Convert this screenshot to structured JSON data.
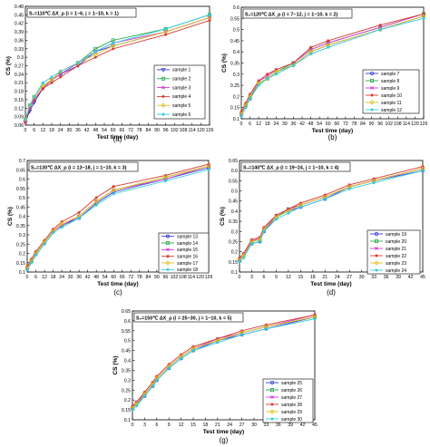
{
  "chart_data": [
    {
      "type": "line",
      "panel_label": "(a)",
      "condition_text": "S₁=110℃   ΔX_ρ (i = 1~6, j = 1~10, k = 1)",
      "xlabel": "Test time (day)",
      "ylabel": "CS (%)",
      "x_ticks": [
        0,
        6,
        12,
        18,
        24,
        30,
        36,
        42,
        48,
        54,
        60,
        66,
        72,
        78,
        84,
        90,
        96,
        102,
        108,
        114,
        120,
        126
      ],
      "xlim": [
        0,
        126
      ],
      "ylim": [
        0.06,
        0.48
      ],
      "y_ticks": [
        0.06,
        0.09,
        0.12,
        0.15,
        0.18,
        0.21,
        0.24,
        0.27,
        0.3,
        0.33,
        0.36,
        0.39,
        0.42,
        0.45,
        0.48
      ],
      "legend_position": "right",
      "x": [
        0,
        3,
        6,
        12,
        18,
        24,
        36,
        48,
        60,
        96,
        126
      ],
      "series": [
        {
          "name": "sample 1",
          "color": "#3a3adf",
          "marker": "tri-down",
          "values": [
            0.07,
            0.11,
            0.14,
            0.19,
            0.22,
            0.24,
            0.27,
            0.32,
            0.34,
            0.39,
            0.44
          ]
        },
        {
          "name": "sample 2",
          "color": "#2aa84a",
          "marker": "square",
          "values": [
            0.08,
            0.13,
            0.16,
            0.2,
            0.22,
            0.24,
            0.28,
            0.33,
            0.36,
            0.4,
            0.45
          ]
        },
        {
          "name": "sample 3",
          "color": "#d03ad0",
          "marker": "cross",
          "values": [
            0.07,
            0.12,
            0.15,
            0.19,
            0.22,
            0.24,
            0.28,
            0.32,
            0.35,
            0.39,
            0.44
          ]
        },
        {
          "name": "sample 4",
          "color": "#d8382e",
          "marker": "star",
          "values": [
            0.07,
            0.12,
            0.15,
            0.19,
            0.21,
            0.23,
            0.27,
            0.3,
            0.33,
            0.38,
            0.43
          ]
        },
        {
          "name": "sample 5",
          "color": "#e0c020",
          "marker": "diamond",
          "values": [
            0.08,
            0.13,
            0.16,
            0.2,
            0.22,
            0.25,
            0.28,
            0.31,
            0.34,
            0.39,
            0.44
          ]
        },
        {
          "name": "sample 6",
          "color": "#33ccdd",
          "marker": "star",
          "values": [
            0.08,
            0.13,
            0.16,
            0.21,
            0.23,
            0.25,
            0.28,
            0.32,
            0.35,
            0.4,
            0.45
          ]
        }
      ]
    },
    {
      "type": "line",
      "panel_label": "(b)",
      "condition_text": "S₂=120℃   ΔX_ρ (i = 7~12, j = 1~10, k = 2)",
      "xlabel": "Test time (day)",
      "ylabel": "CS (%)",
      "x_ticks": [
        0,
        6,
        12,
        18,
        24,
        30,
        36,
        42,
        48,
        54,
        60,
        66,
        72,
        78,
        84,
        90,
        96,
        102,
        108,
        114,
        120,
        126
      ],
      "xlim": [
        0,
        126
      ],
      "ylim": [
        0.1,
        0.6
      ],
      "y_ticks": [
        0.1,
        0.15,
        0.2,
        0.25,
        0.3,
        0.35,
        0.4,
        0.45,
        0.5,
        0.55,
        0.6
      ],
      "legend_position": "bottom-right",
      "x": [
        0,
        3,
        6,
        12,
        18,
        24,
        36,
        48,
        60,
        96,
        126
      ],
      "series": [
        {
          "name": "sample 7",
          "color": "#3a3adf",
          "marker": "circle",
          "values": [
            0.12,
            0.16,
            0.19,
            0.26,
            0.28,
            0.31,
            0.34,
            0.4,
            0.43,
            0.5,
            0.56
          ]
        },
        {
          "name": "sample 8",
          "color": "#2aa84a",
          "marker": "square",
          "values": [
            0.12,
            0.16,
            0.2,
            0.26,
            0.28,
            0.31,
            0.35,
            0.41,
            0.44,
            0.51,
            0.57
          ]
        },
        {
          "name": "sample 9",
          "color": "#d03ad0",
          "marker": "cross",
          "values": [
            0.12,
            0.16,
            0.2,
            0.27,
            0.29,
            0.32,
            0.35,
            0.41,
            0.44,
            0.51,
            0.57
          ]
        },
        {
          "name": "sample 10",
          "color": "#d8382e",
          "marker": "star",
          "values": [
            0.13,
            0.17,
            0.21,
            0.27,
            0.3,
            0.32,
            0.35,
            0.42,
            0.45,
            0.52,
            0.57
          ]
        },
        {
          "name": "sample 11",
          "color": "#e0c020",
          "marker": "diamond",
          "values": [
            0.12,
            0.16,
            0.2,
            0.26,
            0.28,
            0.31,
            0.34,
            0.4,
            0.43,
            0.5,
            0.56
          ]
        },
        {
          "name": "sample 12",
          "color": "#33ccdd",
          "marker": "star",
          "values": [
            0.11,
            0.15,
            0.19,
            0.25,
            0.28,
            0.3,
            0.34,
            0.39,
            0.42,
            0.5,
            0.55
          ]
        }
      ]
    },
    {
      "type": "line",
      "panel_label": "(c)",
      "condition_text": "S₃=130℃   ΔX_ρ (i = 13~18, j = 1~10, k = 3)",
      "xlabel": "Test time (day)",
      "ylabel": "CS (%)",
      "x_ticks": [
        0,
        6,
        12,
        18,
        24,
        30,
        36,
        42,
        48,
        54,
        60,
        66,
        72,
        78,
        84,
        90,
        96,
        102,
        108,
        114,
        120,
        126
      ],
      "xlim": [
        0,
        126
      ],
      "ylim": [
        0.1,
        0.7
      ],
      "y_ticks": [
        0.1,
        0.15,
        0.2,
        0.25,
        0.3,
        0.35,
        0.4,
        0.45,
        0.5,
        0.55,
        0.6,
        0.65,
        0.7
      ],
      "legend_position": "bottom-right",
      "x": [
        0,
        3,
        6,
        12,
        18,
        24,
        36,
        48,
        60,
        96,
        126
      ],
      "series": [
        {
          "name": "sample 13",
          "color": "#3a3adf",
          "marker": "circle",
          "values": [
            0.12,
            0.16,
            0.2,
            0.26,
            0.32,
            0.35,
            0.39,
            0.47,
            0.53,
            0.6,
            0.66
          ]
        },
        {
          "name": "sample 14",
          "color": "#2aa84a",
          "marker": "square",
          "values": [
            0.12,
            0.16,
            0.2,
            0.26,
            0.32,
            0.35,
            0.4,
            0.48,
            0.54,
            0.61,
            0.67
          ]
        },
        {
          "name": "sample 15",
          "color": "#d03ad0",
          "marker": "cross",
          "values": [
            0.12,
            0.16,
            0.2,
            0.26,
            0.32,
            0.35,
            0.4,
            0.48,
            0.54,
            0.6,
            0.67
          ]
        },
        {
          "name": "sample 16",
          "color": "#d8382e",
          "marker": "star",
          "values": [
            0.13,
            0.17,
            0.21,
            0.27,
            0.33,
            0.37,
            0.42,
            0.5,
            0.56,
            0.62,
            0.68
          ]
        },
        {
          "name": "sample 17",
          "color": "#e0c020",
          "marker": "diamond",
          "values": [
            0.12,
            0.16,
            0.2,
            0.26,
            0.32,
            0.36,
            0.4,
            0.48,
            0.54,
            0.61,
            0.67
          ]
        },
        {
          "name": "sample 18",
          "color": "#33ccdd",
          "marker": "star",
          "values": [
            0.11,
            0.15,
            0.19,
            0.25,
            0.31,
            0.34,
            0.39,
            0.46,
            0.52,
            0.59,
            0.65
          ]
        }
      ]
    },
    {
      "type": "line",
      "panel_label": "(d)",
      "condition_text": "S₄=140℃   ΔX_ρ (i = 19~24, j = 1~10, k = 4)",
      "xlabel": "Test time (day)",
      "ylabel": "CS (%)",
      "x_ticks": [
        0,
        3,
        6,
        9,
        12,
        15,
        18,
        21,
        24,
        27,
        30,
        33,
        36,
        39,
        42,
        45
      ],
      "xlim": [
        0,
        45
      ],
      "ylim": [
        0.1,
        0.65
      ],
      "y_ticks": [
        0.1,
        0.15,
        0.2,
        0.25,
        0.3,
        0.35,
        0.4,
        0.45,
        0.5,
        0.55,
        0.6,
        0.65
      ],
      "legend_position": "bottom-right",
      "x": [
        0,
        1,
        3,
        5,
        6,
        9,
        12,
        15,
        21,
        27,
        33,
        45
      ],
      "series": [
        {
          "name": "sample 19",
          "color": "#3a3adf",
          "marker": "circle",
          "values": [
            0.16,
            0.18,
            0.24,
            0.25,
            0.3,
            0.37,
            0.4,
            0.42,
            0.46,
            0.52,
            0.55,
            0.6
          ]
        },
        {
          "name": "sample 20",
          "color": "#2aa84a",
          "marker": "square",
          "values": [
            0.16,
            0.18,
            0.25,
            0.26,
            0.31,
            0.37,
            0.41,
            0.43,
            0.47,
            0.52,
            0.55,
            0.61
          ]
        },
        {
          "name": "sample 21",
          "color": "#d03ad0",
          "marker": "cross",
          "values": [
            0.16,
            0.19,
            0.25,
            0.27,
            0.31,
            0.38,
            0.41,
            0.43,
            0.47,
            0.52,
            0.55,
            0.61
          ]
        },
        {
          "name": "sample 22",
          "color": "#d8382e",
          "marker": "star",
          "values": [
            0.17,
            0.19,
            0.26,
            0.27,
            0.32,
            0.38,
            0.41,
            0.44,
            0.48,
            0.53,
            0.56,
            0.62
          ]
        },
        {
          "name": "sample 23",
          "color": "#e0c020",
          "marker": "diamond",
          "values": [
            0.16,
            0.18,
            0.25,
            0.26,
            0.31,
            0.37,
            0.4,
            0.43,
            0.47,
            0.52,
            0.55,
            0.61
          ]
        },
        {
          "name": "sample 24",
          "color": "#33ccdd",
          "marker": "star",
          "values": [
            0.15,
            0.17,
            0.24,
            0.25,
            0.3,
            0.36,
            0.39,
            0.42,
            0.46,
            0.51,
            0.54,
            0.6
          ]
        }
      ]
    },
    {
      "type": "line",
      "panel_label": "(g)",
      "condition_text": "S₅=150℃   ΔX_ρ (i = 25~30, j = 1~10, k = 5)",
      "xlabel": "Test time (day)",
      "ylabel": "CS (%)",
      "x_ticks": [
        0,
        3,
        6,
        9,
        12,
        15,
        18,
        21,
        24,
        27,
        30,
        33,
        36,
        39,
        42,
        45
      ],
      "xlim": [
        0,
        45
      ],
      "ylim": [
        0.1,
        0.65
      ],
      "y_ticks": [
        0.1,
        0.15,
        0.2,
        0.25,
        0.3,
        0.35,
        0.4,
        0.45,
        0.5,
        0.55,
        0.6,
        0.65
      ],
      "legend_position": "bottom-right",
      "x": [
        0,
        1,
        3,
        5,
        6,
        9,
        12,
        15,
        21,
        27,
        33,
        45
      ],
      "series": [
        {
          "name": "sample 25",
          "color": "#3a3adf",
          "marker": "circle",
          "values": [
            0.16,
            0.18,
            0.22,
            0.27,
            0.3,
            0.36,
            0.41,
            0.45,
            0.5,
            0.53,
            0.56,
            0.62
          ]
        },
        {
          "name": "sample 26",
          "color": "#2aa84a",
          "marker": "square",
          "values": [
            0.16,
            0.18,
            0.23,
            0.28,
            0.31,
            0.37,
            0.42,
            0.46,
            0.5,
            0.54,
            0.57,
            0.62
          ]
        },
        {
          "name": "sample 27",
          "color": "#d03ad0",
          "marker": "cross",
          "values": [
            0.16,
            0.19,
            0.23,
            0.28,
            0.31,
            0.37,
            0.42,
            0.46,
            0.51,
            0.54,
            0.57,
            0.63
          ]
        },
        {
          "name": "sample 28",
          "color": "#d8382e",
          "marker": "star",
          "values": [
            0.17,
            0.19,
            0.24,
            0.29,
            0.32,
            0.38,
            0.43,
            0.47,
            0.51,
            0.55,
            0.58,
            0.63
          ]
        },
        {
          "name": "sample 29",
          "color": "#e0c020",
          "marker": "diamond",
          "values": [
            0.16,
            0.18,
            0.23,
            0.28,
            0.31,
            0.37,
            0.42,
            0.46,
            0.5,
            0.54,
            0.57,
            0.62
          ]
        },
        {
          "name": "sample 30",
          "color": "#33ccdd",
          "marker": "star",
          "values": [
            0.15,
            0.17,
            0.22,
            0.27,
            0.3,
            0.36,
            0.41,
            0.45,
            0.49,
            0.53,
            0.56,
            0.61
          ]
        }
      ]
    }
  ]
}
